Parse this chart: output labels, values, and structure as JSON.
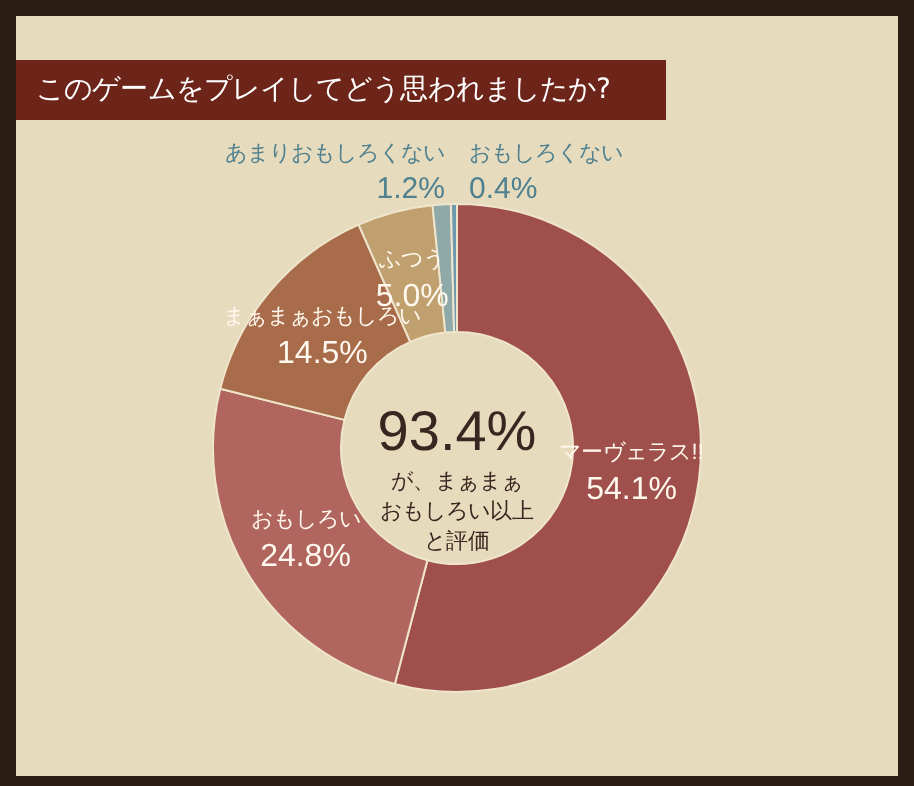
{
  "chart_data": {
    "type": "donut",
    "title": "このゲームをプレイしてどう思われましたか?",
    "categories": [
      "マーヴェラス!!",
      "おもしろい",
      "まぁまぁおもしろい",
      "ふつう",
      "あまりおもしろくない",
      "おもしろくない"
    ],
    "values": [
      54.1,
      24.8,
      14.5,
      5.0,
      1.2,
      0.4
    ],
    "value_labels": [
      "54.1%",
      "24.8%",
      "14.5%",
      "5.0%",
      "1.2%",
      "0.4%"
    ],
    "colors": [
      "#a0504c",
      "#b0665e",
      "#a86c4a",
      "#bfa06e",
      "#8fa8a8",
      "#6e9ab0"
    ],
    "annotations": [
      "93.4%",
      "が、まぁまぁ",
      "おもしろい以上",
      "と評価"
    ],
    "legend": false
  }
}
